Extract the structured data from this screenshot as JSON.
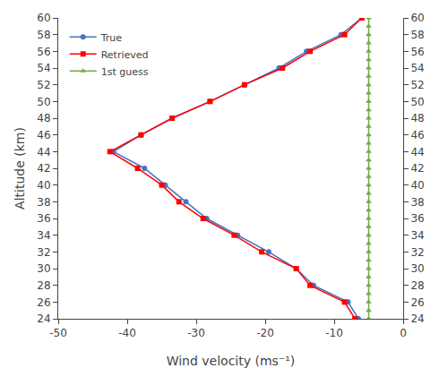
{
  "chart_data": {
    "type": "line",
    "xlabel": "Wind velocity (ms⁻¹)",
    "ylabel": "Altitude (km)",
    "series": [
      {
        "name": "True",
        "color": "#4472C4",
        "marker": "circle",
        "x": [
          -6.5,
          -8.0,
          -13.0,
          -15.5,
          -19.5,
          -24.0,
          -28.5,
          -31.5,
          -34.5,
          -37.5,
          -42.0,
          -38.0,
          -33.5,
          -28.0,
          -23.0,
          -18.0,
          -14.0,
          -9.0,
          -6.0
        ],
        "values": [
          24,
          26,
          28,
          30,
          32,
          34,
          36,
          38,
          40,
          42,
          44,
          46,
          48,
          50,
          52,
          54,
          56,
          58,
          60
        ]
      },
      {
        "name": "Retrieved",
        "color": "#FF0000",
        "marker": "square",
        "x": [
          -7.0,
          -8.5,
          -13.5,
          -15.5,
          -20.5,
          -24.5,
          -29.0,
          -32.5,
          -35.0,
          -38.5,
          -42.5,
          -38.0,
          -33.5,
          -28.0,
          -23.0,
          -17.5,
          -13.5,
          -8.5,
          -6.0
        ],
        "values": [
          24,
          26,
          28,
          30,
          32,
          34,
          36,
          38,
          40,
          42,
          44,
          46,
          48,
          50,
          52,
          54,
          56,
          58,
          60
        ]
      },
      {
        "name": "1st guess",
        "color": "#70AD47",
        "marker": "triangle-up",
        "x": [
          -5,
          -5,
          -5,
          -5,
          -5,
          -5,
          -5,
          -5,
          -5,
          -5,
          -5,
          -5,
          -5,
          -5,
          -5,
          -5,
          -5,
          -5,
          -5,
          -5,
          -5,
          -5,
          -5,
          -5,
          -5,
          -5,
          -5,
          -5,
          -5,
          -5,
          -5,
          -5,
          -5,
          -5,
          -5,
          -5,
          -5
        ],
        "values": [
          24,
          25,
          26,
          27,
          28,
          29,
          30,
          31,
          32,
          33,
          34,
          35,
          36,
          37,
          38,
          39,
          40,
          41,
          42,
          43,
          44,
          45,
          46,
          47,
          48,
          49,
          50,
          51,
          52,
          53,
          54,
          55,
          56,
          57,
          58,
          59,
          60
        ]
      }
    ],
    "xlim": [
      -50,
      0
    ],
    "xticks": [
      -50,
      -40,
      -30,
      -20,
      -10,
      0
    ],
    "ylim": [
      24,
      60
    ],
    "yticks": [
      24,
      26,
      28,
      30,
      32,
      34,
      36,
      38,
      40,
      42,
      44,
      46,
      48,
      50,
      52,
      54,
      56,
      58,
      60
    ],
    "y2lim": [
      24,
      60
    ],
    "y2ticks": [
      24,
      26,
      28,
      30,
      32,
      34,
      36,
      38,
      40,
      42,
      44,
      46,
      48,
      50,
      52,
      54,
      56,
      58,
      60
    ],
    "grid": false,
    "legend": "upper left"
  }
}
